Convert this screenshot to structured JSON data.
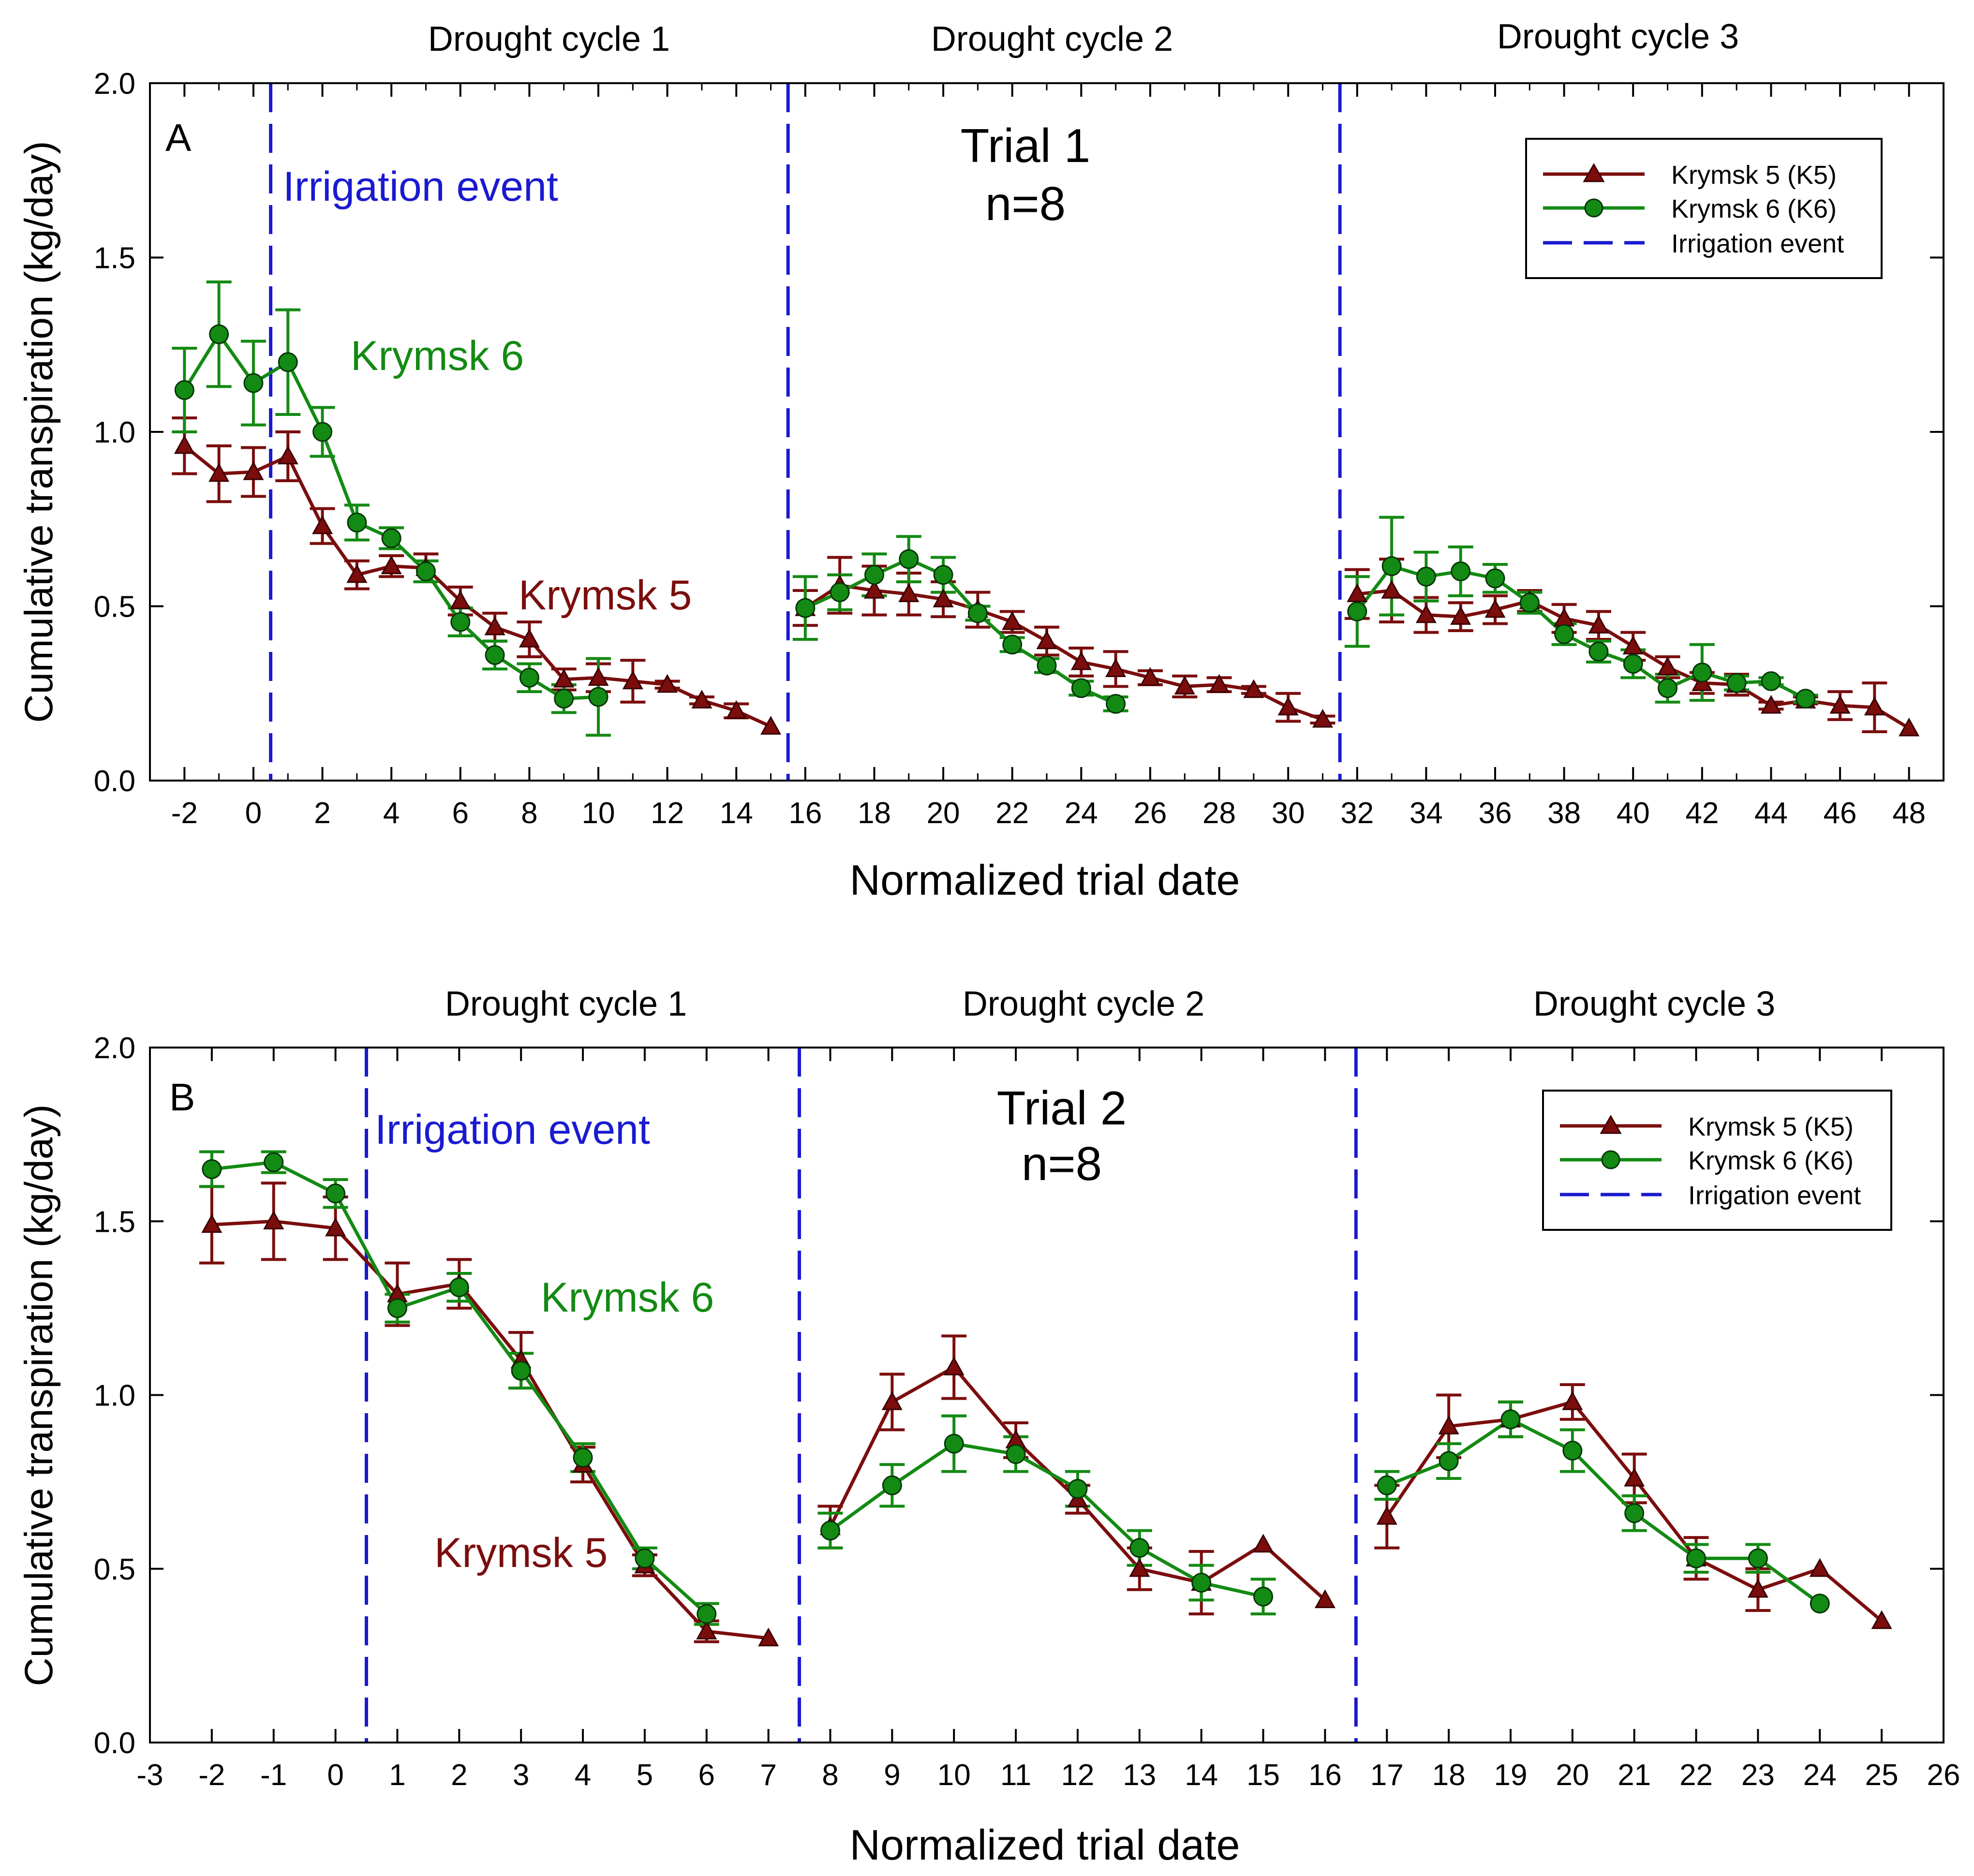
{
  "chart_data": [
    {
      "panel": "A",
      "type": "line",
      "trial_title": "Trial 1",
      "trial_n": "n=8",
      "cycle_labels": [
        "Drought cycle 1",
        "Drought cycle 2",
        "Drought cycle 3"
      ],
      "irrigation_label": "Irrigation event",
      "k6_label": "Krymsk 6",
      "k5_label": "Krymsk 5",
      "xlabel": "Normalized trial date",
      "ylabel": "Cumulative transpiration (kg/day)",
      "xlim": [
        -3,
        49
      ],
      "ylim": [
        0,
        2
      ],
      "xticks_major": [
        -2,
        0,
        2,
        4,
        6,
        8,
        10,
        12,
        14,
        16,
        18,
        20,
        22,
        24,
        26,
        28,
        30,
        32,
        34,
        36,
        38,
        40,
        42,
        44,
        46,
        48
      ],
      "xtick_labels": [
        "-2",
        "0",
        "2",
        "4",
        "6",
        "8",
        "10",
        "12",
        "14",
        "16",
        "18",
        "20",
        "22",
        "24",
        "26",
        "28",
        "30",
        "32",
        "34",
        "36",
        "38",
        "40",
        "42",
        "44",
        "46",
        "48"
      ],
      "xticks_minor": [
        -1,
        1,
        3,
        5,
        7,
        9,
        11,
        13,
        15,
        17,
        19,
        21,
        23,
        25,
        27,
        29,
        31,
        33,
        35,
        37,
        39,
        41,
        43,
        45,
        47
      ],
      "yticks": [
        0,
        0.5,
        1,
        1.5,
        2
      ],
      "ytick_labels": [
        "0.0",
        "0.5",
        "1.0",
        "1.5",
        "2.0"
      ],
      "irrigation_x": [
        0.5,
        15.5,
        31.5
      ],
      "legend": {
        "position": "top-right",
        "entries": [
          "Krymsk 5 (K5)",
          "Krymsk 6 (K6)",
          "Irrigation event"
        ]
      },
      "series": [
        {
          "name": "Krymsk 5 (K5)",
          "marker": "triangle",
          "color": "#7b0d0d",
          "segments": [
            {
              "x": [
                -2,
                -1,
                0,
                1,
                2,
                3,
                4,
                5,
                6,
                7,
                8,
                9,
                10,
                11,
                12,
                13,
                14,
                15
              ],
              "y": [
                0.96,
                0.88,
                0.885,
                0.93,
                0.73,
                0.59,
                0.615,
                0.61,
                0.515,
                0.44,
                0.405,
                0.29,
                0.295,
                0.285,
                0.275,
                0.23,
                0.2,
                0.155
              ],
              "err": [
                0.08,
                0.08,
                0.07,
                0.07,
                0.05,
                0.04,
                0.03,
                0.04,
                0.04,
                0.04,
                0.05,
                0.03,
                0.04,
                0.06,
                0.01,
                0.01,
                0.02,
                0.0
              ]
            },
            {
              "x": [
                16,
                17,
                18,
                19,
                20,
                21,
                22,
                23,
                24,
                25,
                26,
                27,
                28,
                29,
                30,
                31
              ],
              "y": [
                0.495,
                0.56,
                0.545,
                0.535,
                0.52,
                0.49,
                0.455,
                0.4,
                0.34,
                0.32,
                0.295,
                0.27,
                0.275,
                0.26,
                0.21,
                0.175
              ],
              "err": [
                0.05,
                0.08,
                0.07,
                0.06,
                0.05,
                0.05,
                0.03,
                0.04,
                0.04,
                0.05,
                0.02,
                0.03,
                0.02,
                0.01,
                0.04,
                0.01
              ]
            },
            {
              "x": [
                32,
                33,
                34,
                35,
                36,
                37,
                38,
                39,
                40,
                41,
                42,
                43,
                44,
                45,
                46,
                47,
                48
              ],
              "y": [
                0.535,
                0.545,
                0.475,
                0.47,
                0.49,
                0.515,
                0.465,
                0.445,
                0.385,
                0.325,
                0.28,
                0.275,
                0.215,
                0.23,
                0.215,
                0.21,
                0.15
              ],
              "err": [
                0.07,
                0.09,
                0.05,
                0.04,
                0.04,
                0.03,
                0.04,
                0.04,
                0.04,
                0.03,
                0.03,
                0.03,
                0.01,
                0.01,
                0.04,
                0.07,
                0.0
              ]
            }
          ]
        },
        {
          "name": "Krymsk 6 (K6)",
          "marker": "circle",
          "color": "#138a13",
          "segments": [
            {
              "x": [
                -2,
                -1,
                0,
                1,
                2,
                3,
                4,
                5,
                6,
                7,
                8,
                9,
                10
              ],
              "y": [
                1.12,
                1.28,
                1.14,
                1.2,
                1.0,
                0.74,
                0.695,
                0.6,
                0.455,
                0.36,
                0.295,
                0.235,
                0.24
              ],
              "err": [
                0.12,
                0.15,
                0.12,
                0.15,
                0.07,
                0.05,
                0.03,
                0.03,
                0.04,
                0.04,
                0.04,
                0.04,
                0.11
              ]
            },
            {
              "x": [
                16,
                17,
                18,
                19,
                20,
                21,
                22,
                23,
                24,
                25
              ],
              "y": [
                0.495,
                0.54,
                0.59,
                0.635,
                0.59,
                0.48,
                0.39,
                0.33,
                0.265,
                0.22
              ],
              "err": [
                0.09,
                0.05,
                0.06,
                0.065,
                0.05,
                0.02,
                0.02,
                0.02,
                0.02,
                0.02
              ]
            },
            {
              "x": [
                32,
                33,
                34,
                35,
                36,
                37,
                38,
                39,
                40,
                41,
                42,
                43,
                44,
                45
              ],
              "y": [
                0.485,
                0.615,
                0.585,
                0.6,
                0.58,
                0.51,
                0.42,
                0.37,
                0.335,
                0.265,
                0.31,
                0.28,
                0.285,
                0.235
              ],
              "err": [
                0.1,
                0.14,
                0.07,
                0.07,
                0.04,
                0.03,
                0.03,
                0.03,
                0.04,
                0.04,
                0.08,
                0.02,
                0.01,
                0.01
              ]
            }
          ]
        }
      ]
    },
    {
      "panel": "B",
      "type": "line",
      "trial_title": "Trial 2",
      "trial_n": "n=8",
      "cycle_labels": [
        "Drought cycle 1",
        "Drought cycle 2",
        "Drought cycle 3"
      ],
      "irrigation_label": "Irrigation event",
      "k6_label": "Krymsk 6",
      "k5_label": "Krymsk 5",
      "xlabel": "Normalized trial date",
      "ylabel": "Cumulative transpiration (kg/day)",
      "xlim": [
        -3,
        26
      ],
      "ylim": [
        0,
        2
      ],
      "xticks_major": [
        -3,
        -2,
        -1,
        0,
        1,
        2,
        3,
        4,
        5,
        6,
        7,
        8,
        9,
        10,
        11,
        12,
        13,
        14,
        15,
        16,
        17,
        18,
        19,
        20,
        21,
        22,
        23,
        24,
        25,
        26
      ],
      "xtick_labels": [
        "-3",
        "-2",
        "-1",
        "0",
        "1",
        "2",
        "3",
        "4",
        "5",
        "6",
        "7",
        "8",
        "9",
        "10",
        "11",
        "12",
        "13",
        "14",
        "15",
        "16",
        "17",
        "18",
        "19",
        "20",
        "21",
        "22",
        "23",
        "24",
        "25",
        "26"
      ],
      "xticks_minor": [],
      "yticks": [
        0,
        0.5,
        1,
        1.5,
        2
      ],
      "ytick_labels": [
        "0.0",
        "0.5",
        "1.0",
        "1.5",
        "2.0"
      ],
      "irrigation_x": [
        0.5,
        7.5,
        16.5
      ],
      "legend": {
        "position": "top-right",
        "entries": [
          "Krymsk 5 (K5)",
          "Krymsk 6 (K6)",
          "Irrigation event"
        ]
      },
      "series": [
        {
          "name": "Krymsk 5 (K5)",
          "marker": "triangle",
          "color": "#7b0d0d",
          "segments": [
            {
              "x": [
                -2,
                -1,
                0,
                1,
                2,
                3,
                4,
                5,
                6,
                7
              ],
              "y": [
                1.49,
                1.5,
                1.48,
                1.29,
                1.32,
                1.1,
                0.8,
                0.51,
                0.32,
                0.3
              ],
              "err": [
                0.11,
                0.11,
                0.09,
                0.09,
                0.07,
                0.08,
                0.05,
                0.03,
                0.03,
                0.0
              ]
            },
            {
              "x": [
                8,
                9,
                10,
                11,
                12,
                13,
                14,
                15,
                16
              ],
              "y": [
                0.62,
                0.98,
                1.08,
                0.87,
                0.7,
                0.5,
                0.46,
                0.57,
                0.41
              ],
              "err": [
                0.06,
                0.08,
                0.09,
                0.05,
                0.04,
                0.06,
                0.09,
                0.0,
                0.0
              ]
            },
            {
              "x": [
                17,
                18,
                19,
                20,
                21,
                22,
                23,
                24,
                25
              ],
              "y": [
                0.65,
                0.91,
                0.93,
                0.98,
                0.76,
                0.53,
                0.44,
                0.5,
                0.35
              ],
              "err": [
                0.09,
                0.09,
                0.05,
                0.05,
                0.07,
                0.06,
                0.06,
                0.0,
                0.0
              ]
            }
          ]
        },
        {
          "name": "Krymsk 6 (K6)",
          "marker": "circle",
          "color": "#138a13",
          "segments": [
            {
              "x": [
                -2,
                -1,
                0,
                1,
                2,
                3,
                4,
                5,
                6
              ],
              "y": [
                1.65,
                1.67,
                1.58,
                1.25,
                1.31,
                1.07,
                0.82,
                0.53,
                0.37
              ],
              "err": [
                0.05,
                0.03,
                0.04,
                0.04,
                0.04,
                0.05,
                0.04,
                0.03,
                0.03
              ]
            },
            {
              "x": [
                8,
                9,
                10,
                11,
                12,
                13,
                14,
                15
              ],
              "y": [
                0.61,
                0.74,
                0.86,
                0.83,
                0.73,
                0.56,
                0.46,
                0.42
              ],
              "err": [
                0.05,
                0.06,
                0.08,
                0.05,
                0.05,
                0.05,
                0.05,
                0.05
              ]
            },
            {
              "x": [
                17,
                18,
                19,
                20,
                21,
                22,
                23,
                24
              ],
              "y": [
                0.74,
                0.81,
                0.93,
                0.84,
                0.66,
                0.53,
                0.53,
                0.4
              ],
              "err": [
                0.04,
                0.05,
                0.05,
                0.06,
                0.05,
                0.04,
                0.04,
                0.0
              ]
            }
          ]
        }
      ]
    }
  ]
}
